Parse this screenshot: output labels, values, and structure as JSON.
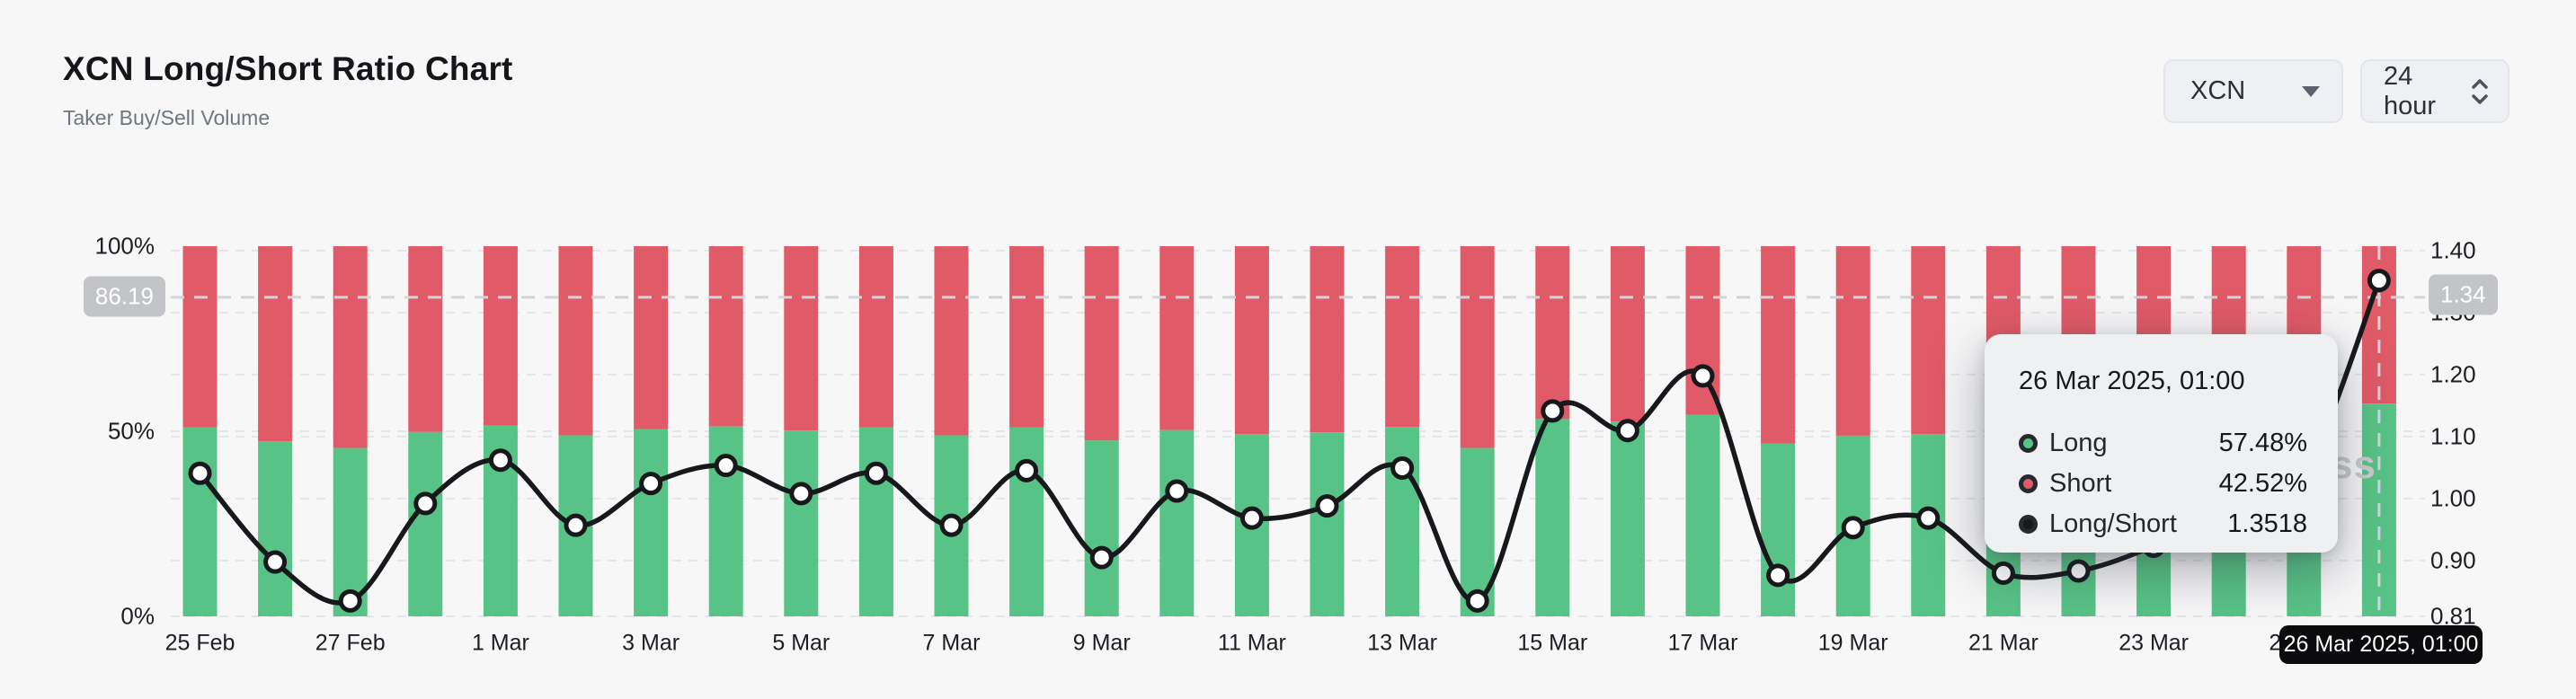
{
  "header": {
    "title": "XCN Long/Short Ratio Chart",
    "subtitle": "Taker Buy/Sell Volume"
  },
  "controls": {
    "symbol": {
      "value": "XCN"
    },
    "interval": {
      "value": "24 hour"
    }
  },
  "watermark": "coinglass",
  "colors": {
    "long": "#58c386",
    "short": "#e05a68",
    "ratio_line": "#16181b",
    "grid": "#e4e5e8",
    "crosshair": "#d2d4d7",
    "axis_badge_bg": "#c2c4c7",
    "date_badge_bg": "#0b0b0d",
    "tooltip_bg": "#eff0f2"
  },
  "chart_data": {
    "type": "bar",
    "subtype": "stacked-percent-bars-with-ratio-line",
    "title": "XCN Long/Short Ratio Chart",
    "xlabel": "",
    "ylabel_left": "Taker volume share (%)",
    "ylabel_right": "Long/Short ratio",
    "categories": [
      "25 Feb",
      "26 Feb",
      "27 Feb",
      "28 Feb",
      "1 Mar",
      "2 Mar",
      "3 Mar",
      "4 Mar",
      "5 Mar",
      "6 Mar",
      "7 Mar",
      "8 Mar",
      "9 Mar",
      "10 Mar",
      "11 Mar",
      "12 Mar",
      "13 Mar",
      "14 Mar",
      "15 Mar",
      "16 Mar",
      "17 Mar",
      "18 Mar",
      "19 Mar",
      "20 Mar",
      "21 Mar",
      "22 Mar",
      "23 Mar",
      "24 Mar",
      "25 Mar",
      "26 Mar"
    ],
    "series": [
      {
        "name": "Long",
        "type": "bar",
        "unit": "%",
        "color": "#58c386",
        "values": [
          51.0,
          47.3,
          45.5,
          49.8,
          51.5,
          48.9,
          50.6,
          51.3,
          50.2,
          51.0,
          48.9,
          51.1,
          47.5,
          50.3,
          49.2,
          49.7,
          51.2,
          45.5,
          53.3,
          52.6,
          54.5,
          46.7,
          48.8,
          49.2,
          46.8,
          46.9,
          48.0,
          49.5,
          51.0,
          57.48
        ]
      },
      {
        "name": "Short",
        "type": "bar",
        "unit": "%",
        "color": "#e05a68",
        "values": [
          49.0,
          52.7,
          54.5,
          50.2,
          48.5,
          51.1,
          49.4,
          48.7,
          49.8,
          49.0,
          51.1,
          48.9,
          52.5,
          49.7,
          50.8,
          50.3,
          48.8,
          54.5,
          46.7,
          47.4,
          45.5,
          53.3,
          51.2,
          50.8,
          53.2,
          53.1,
          52.0,
          50.5,
          49.0,
          42.52
        ]
      },
      {
        "name": "Long/Short",
        "type": "line",
        "color": "#16181b",
        "values": [
          1.0408,
          0.8976,
          0.8349,
          0.992,
          1.0619,
          0.9569,
          1.0243,
          1.0534,
          1.008,
          1.0408,
          0.9569,
          1.045,
          0.9048,
          1.0121,
          0.9685,
          0.9881,
          1.0492,
          0.8349,
          1.1413,
          1.1097,
          1.1978,
          0.8762,
          0.9531,
          0.9685,
          0.8797,
          0.8832,
          0.9231,
          0.9802,
          1.0408,
          1.3518
        ]
      }
    ],
    "left_axis": {
      "ticks": [
        {
          "label": "100%",
          "value": 100
        },
        {
          "label": "50%",
          "value": 50
        },
        {
          "label": "0%",
          "value": 0
        }
      ],
      "range": [
        0,
        100
      ]
    },
    "right_axis": {
      "ticks": [
        {
          "label": "1.40",
          "value": 1.4
        },
        {
          "label": "1.30",
          "value": 1.3
        },
        {
          "label": "1.20",
          "value": 1.2
        },
        {
          "label": "1.10",
          "value": 1.1
        },
        {
          "label": "1.00",
          "value": 1.0
        },
        {
          "label": "0.90",
          "value": 0.9
        },
        {
          "label": "0.81",
          "value": 0.81
        }
      ],
      "range": [
        0.81,
        1.4
      ]
    },
    "x_tick_labels": [
      "25 Feb",
      "27 Feb",
      "1 Mar",
      "3 Mar",
      "5 Mar",
      "7 Mar",
      "9 Mar",
      "11 Mar",
      "13 Mar",
      "15 Mar",
      "17 Mar",
      "19 Mar",
      "21 Mar",
      "23 Mar",
      "25 Mar"
    ],
    "grid": "dashed horizontal",
    "legend_position": "tooltip-only",
    "crosshair": {
      "hovered_index": 29,
      "pct_label": "86.19",
      "ratio_label": "1.34",
      "date_label": "26 Mar 2025, 01:00"
    }
  },
  "tooltip": {
    "title": "26 Mar 2025, 01:00",
    "rows": [
      {
        "label": "Long",
        "value": "57.48%",
        "color": "#58c386"
      },
      {
        "label": "Short",
        "value": "42.52%",
        "color": "#e05a68"
      },
      {
        "label": "Long/Short",
        "value": "1.3518",
        "color": "#17181b"
      }
    ]
  }
}
